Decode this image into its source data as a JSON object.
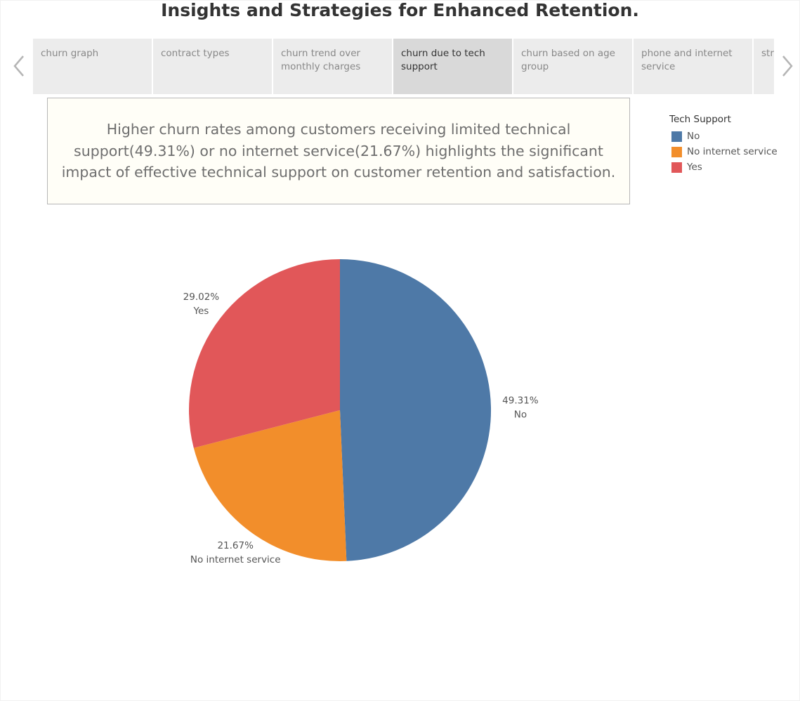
{
  "header": {
    "title": "Insights and Strategies for Enhanced Retention."
  },
  "tabs": [
    {
      "label": "churn graph",
      "active": false
    },
    {
      "label": "contract types",
      "active": false
    },
    {
      "label": "churn trend over monthly charges",
      "active": false
    },
    {
      "label": "churn due to tech support",
      "active": true
    },
    {
      "label": "churn based on age group",
      "active": false
    },
    {
      "label": "phone  and internet service",
      "active": false
    },
    {
      "label": "streaming tv",
      "active": false
    }
  ],
  "navigation": {
    "prev_icon": "chevron-left-icon",
    "next_icon": "chevron-right-icon"
  },
  "insight": {
    "text": "Higher churn rates among customers receiving limited technical support(49.31%) or no internet service(21.67%) highlights the significant impact of effective technical support on customer retention and satisfaction."
  },
  "legend": {
    "title": "Tech Support",
    "items": [
      {
        "label": "No",
        "color": "#4e79a7"
      },
      {
        "label": "No internet service",
        "color": "#f28e2b"
      },
      {
        "label": "Yes",
        "color": "#e15759"
      }
    ]
  },
  "chart_data": {
    "type": "pie",
    "title": "",
    "legend_title": "Tech Support",
    "legend_position": "top-right",
    "slices": [
      {
        "label": "No",
        "value": 49.31,
        "display": "49.31%",
        "color": "#4e79a7"
      },
      {
        "label": "No internet service",
        "value": 21.67,
        "display": "21.67%",
        "color": "#f28e2b"
      },
      {
        "label": "Yes",
        "value": 29.02,
        "display": "29.02%",
        "color": "#e15759"
      }
    ]
  }
}
